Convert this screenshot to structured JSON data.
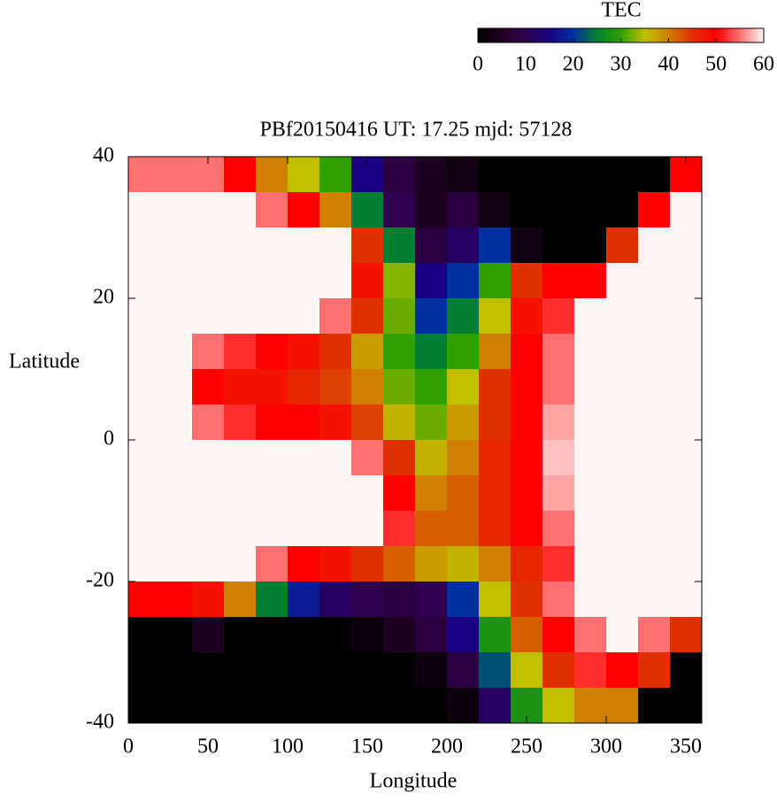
{
  "chart_data": {
    "type": "heatmap",
    "title": "PBf20150416  UT: 17.25  mjd: 57128",
    "xlabel": "Longitude",
    "ylabel": "Latitude",
    "x": [
      10,
      30,
      50,
      70,
      90,
      110,
      130,
      150,
      170,
      190,
      210,
      230,
      250,
      270,
      290,
      310,
      330,
      350
    ],
    "y": [
      37.5,
      32.5,
      27.5,
      22.5,
      17.5,
      12.5,
      7.5,
      2.5,
      -2.5,
      -7.5,
      -12.5,
      -17.5,
      -22.5,
      -27.5,
      -32.5,
      -37.5
    ],
    "z": [
      [
        55,
        55,
        55,
        50,
        40,
        35,
        30,
        15,
        8,
        5,
        3,
        0,
        0,
        0,
        0,
        0,
        0,
        50
      ],
      [
        60,
        60,
        60,
        60,
        55,
        50,
        40,
        25,
        10,
        5,
        8,
        3,
        0,
        0,
        0,
        0,
        50,
        60
      ],
      [
        60,
        60,
        60,
        60,
        60,
        60,
        60,
        45,
        25,
        8,
        12,
        20,
        3,
        0,
        0,
        45,
        60,
        60
      ],
      [
        60,
        60,
        60,
        60,
        60,
        60,
        60,
        48,
        33,
        15,
        20,
        30,
        45,
        50,
        50,
        60,
        60,
        60
      ],
      [
        60,
        60,
        60,
        60,
        60,
        60,
        55,
        45,
        32,
        20,
        25,
        35,
        48,
        52,
        60,
        60,
        60,
        60
      ],
      [
        60,
        60,
        55,
        52,
        50,
        48,
        45,
        38,
        30,
        25,
        30,
        40,
        50,
        55,
        60,
        60,
        60,
        60
      ],
      [
        60,
        60,
        50,
        48,
        48,
        46,
        44,
        40,
        32,
        30,
        35,
        45,
        50,
        55,
        60,
        60,
        60,
        60
      ],
      [
        60,
        60,
        55,
        52,
        50,
        50,
        48,
        44,
        36,
        32,
        38,
        45,
        50,
        57,
        60,
        60,
        60,
        60
      ],
      [
        60,
        60,
        60,
        60,
        60,
        60,
        60,
        55,
        45,
        36,
        40,
        46,
        50,
        58,
        60,
        60,
        60,
        60
      ],
      [
        60,
        60,
        60,
        60,
        60,
        60,
        60,
        60,
        50,
        40,
        42,
        46,
        50,
        57,
        60,
        60,
        60,
        60
      ],
      [
        60,
        60,
        60,
        60,
        60,
        60,
        60,
        60,
        52,
        42,
        42,
        46,
        50,
        55,
        60,
        60,
        60,
        60
      ],
      [
        60,
        60,
        60,
        60,
        55,
        50,
        48,
        45,
        42,
        38,
        36,
        40,
        46,
        52,
        60,
        60,
        60,
        60
      ],
      [
        50,
        50,
        48,
        40,
        25,
        18,
        12,
        10,
        8,
        10,
        20,
        35,
        45,
        55,
        60,
        60,
        60,
        60
      ],
      [
        0,
        0,
        5,
        0,
        0,
        0,
        0,
        2,
        5,
        8,
        15,
        28,
        42,
        50,
        55,
        60,
        55,
        45
      ],
      [
        0,
        0,
        0,
        0,
        0,
        0,
        0,
        0,
        0,
        2,
        8,
        22,
        35,
        45,
        52,
        50,
        45,
        0
      ],
      [
        0,
        0,
        0,
        0,
        0,
        0,
        0,
        0,
        0,
        0,
        2,
        12,
        28,
        35,
        40,
        40,
        0,
        0
      ]
    ],
    "xlim": [
      0,
      360
    ],
    "ylim": [
      -40,
      40
    ],
    "xticks": [
      0,
      50,
      100,
      150,
      200,
      250,
      300,
      350
    ],
    "yticks": [
      -40,
      -20,
      0,
      20,
      40
    ],
    "zlim": [
      0,
      60
    ],
    "colormap": [
      "#000000",
      "#1e0020",
      "#300050",
      "#1a0080",
      "#0030a0",
      "#008030",
      "#30a000",
      "#c0c000",
      "#d08000",
      "#e03000",
      "#ff0000",
      "#ff7070",
      "#fff5f5"
    ],
    "colorbar": {
      "label": "TEC",
      "ticks": [
        0,
        10,
        20,
        30,
        40,
        50,
        60
      ]
    }
  }
}
